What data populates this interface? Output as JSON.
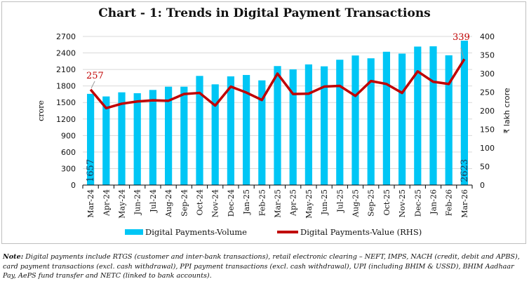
{
  "chart_data": {
    "type": "bar+line",
    "title": "Chart - 1: Trends in Digital Payment Transactions",
    "categories": [
      "Mar-24",
      "Apr-24",
      "May-24",
      "Jun-24",
      "Jul-24",
      "Aug-24",
      "Sep-24",
      "Oct-24",
      "Nov-24",
      "Dec-24",
      "Jan-25",
      "Feb-25",
      "Mar-25",
      "Apr-25",
      "May-25",
      "Jun-25",
      "Jul-25",
      "Aug-25",
      "Sep-25",
      "Oct-25",
      "Nov-25",
      "Dec-25",
      "Jan-26",
      "Feb-26",
      "Mar-26"
    ],
    "series": [
      {
        "name": "Digital Payments-Volume",
        "type": "bar",
        "axis": "left",
        "color": "#00c6f5",
        "values": [
          1657,
          1610,
          1685,
          1669,
          1728,
          1787,
          1787,
          1983,
          1830,
          1975,
          2000,
          1902,
          2162,
          2102,
          2192,
          2157,
          2277,
          2354,
          2303,
          2422,
          2388,
          2516,
          2521,
          2358,
          2623
        ],
        "data_labels": {
          "first": "1657",
          "last": "2623"
        }
      },
      {
        "name": "Digital Payments-Value (RHS)",
        "type": "line",
        "axis": "right",
        "color": "#c00000",
        "values": [
          257,
          207,
          219,
          225,
          228,
          227,
          245,
          248,
          214,
          265,
          249,
          229,
          300,
          245,
          246,
          265,
          267,
          240,
          280,
          272,
          248,
          306,
          278,
          272,
          339
        ],
        "data_labels": {
          "first": "257",
          "last": "339"
        }
      }
    ],
    "ylabel": "crore",
    "ylim": [
      0,
      2700
    ],
    "yticks": [
      "0",
      "300",
      "600",
      "900",
      "1200",
      "1500",
      "1800",
      "2100",
      "2400",
      "2700"
    ],
    "y2label": "₹ lakh crore",
    "y2lim": [
      0,
      400
    ],
    "y2ticks": [
      "0",
      "50",
      "100",
      "150",
      "200",
      "250",
      "300",
      "350",
      "400"
    ],
    "grid": true,
    "legend": "bottom"
  },
  "note": {
    "label": "Note:",
    "text": " Digital payments include RTGS (customer and inter-bank transactions), retail electronic clearing – NEFT, IMPS, NACH (credit, debit and APBS), card payment transactions (excl. cash withdrawal), PPI payment transactions (excl. cash withdrawal), UPI (including BHIM & USSD), BHIM Aadhaar Pay, AePS fund transfer and NETC (linked to bank accounts)."
  }
}
